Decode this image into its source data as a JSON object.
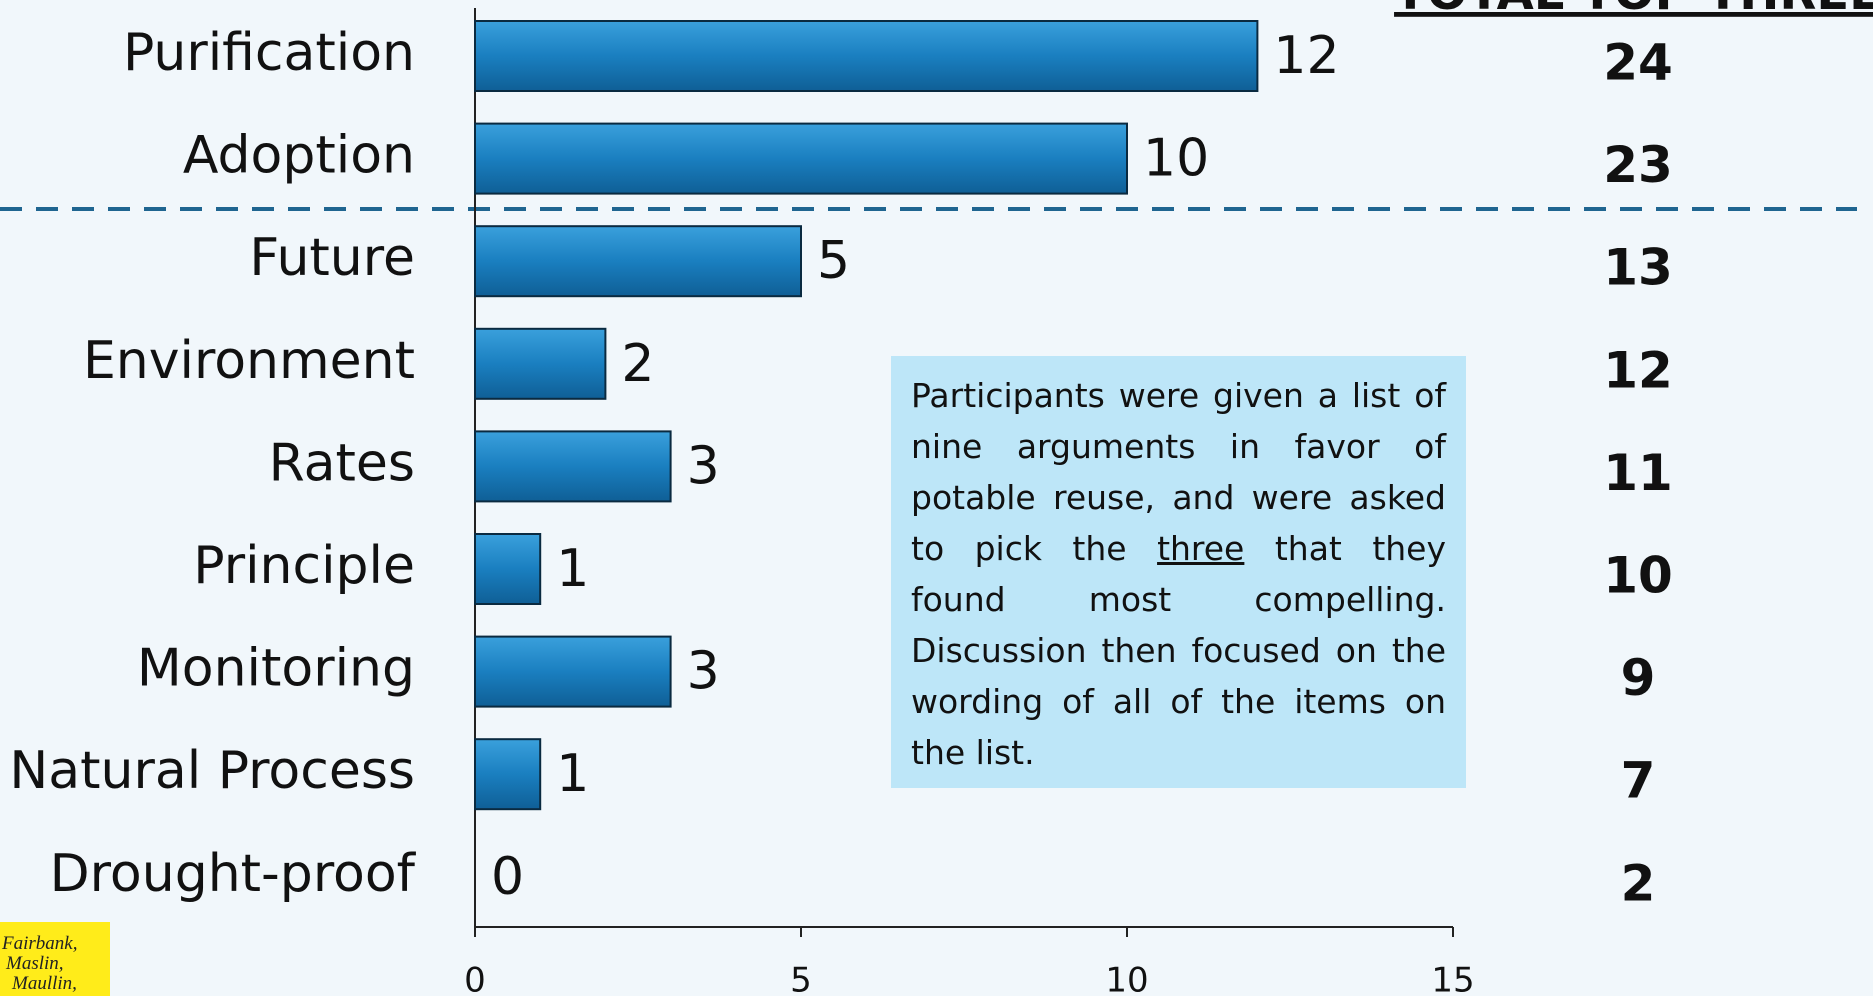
{
  "chart_data": {
    "type": "bar",
    "orientation": "horizontal",
    "categories": [
      "Purification",
      "Adoption",
      "Future",
      "Environment",
      "Rates",
      "Principle",
      "Monitoring",
      "Natural Process",
      "Drought-proof"
    ],
    "values": [
      12,
      10,
      5,
      2,
      3,
      1,
      3,
      1,
      0
    ],
    "color": "#1a7fc0",
    "xlim": [
      0,
      15
    ],
    "xticks": [
      0,
      5,
      10,
      15
    ],
    "totals_header": "TOTAL TOP THREE",
    "totals": [
      24,
      23,
      13,
      12,
      11,
      10,
      9,
      7,
      2
    ],
    "note": [
      "Participants were given a list of nine arguments in favor of potable reuse, and were asked to pick the ",
      "three",
      " that they found most compelling. Discussion then focused on the wording of all of the items on the list."
    ]
  },
  "logo": [
    "Fairbank,",
    "Maslin,",
    "Maullin,"
  ]
}
